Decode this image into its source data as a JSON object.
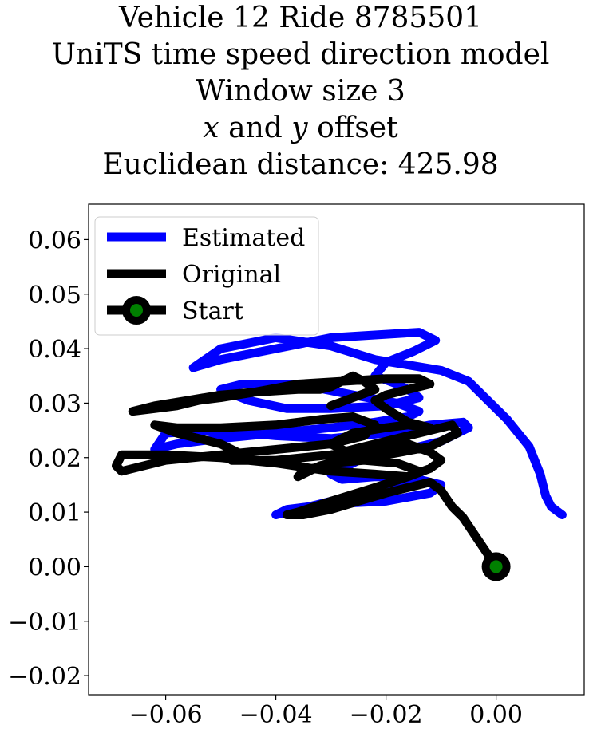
{
  "chart_data": {
    "type": "line",
    "title_lines": [
      "Vehicle 12 Ride 8785501",
      "UniTS time speed direction model",
      "Window size 3",
      "x and y offset",
      "Euclidean distance: 425.98"
    ],
    "xlabel": "",
    "ylabel": "",
    "xlim": [
      -0.074,
      0.016
    ],
    "ylim": [
      -0.0235,
      0.0665
    ],
    "xticks": [
      -0.06,
      -0.04,
      -0.02,
      0.0
    ],
    "xtick_labels": [
      "−0.06",
      "−0.04",
      "−0.02",
      "0.00"
    ],
    "yticks": [
      -0.02,
      -0.01,
      0.0,
      0.01,
      0.02,
      0.03,
      0.04,
      0.05,
      0.06
    ],
    "ytick_labels": [
      "−0.02",
      "−0.01",
      "0.00",
      "0.01",
      "0.02",
      "0.03",
      "0.04",
      "0.05",
      "0.06"
    ],
    "grid": false,
    "legend_position": "top-left",
    "series": [
      {
        "name": "Estimated",
        "color": "#0000ff",
        "x": [
          0.012,
          0.01,
          0.009,
          0.008,
          0.006,
          0.002,
          -0.002,
          -0.005,
          -0.01,
          -0.016,
          -0.022,
          -0.03,
          -0.04,
          -0.05,
          -0.055,
          -0.05,
          -0.04,
          -0.03,
          -0.022,
          -0.014,
          -0.011,
          -0.015,
          -0.02,
          -0.022,
          -0.018,
          -0.016,
          -0.014,
          -0.02,
          -0.03,
          -0.038,
          -0.045,
          -0.05,
          -0.046,
          -0.036,
          -0.026,
          -0.018,
          -0.014,
          -0.016,
          -0.022,
          -0.03,
          -0.04,
          -0.05,
          -0.058,
          -0.062,
          -0.06,
          -0.05,
          -0.04,
          -0.03,
          -0.02,
          -0.012,
          -0.006,
          -0.005,
          -0.01,
          -0.018,
          -0.025,
          -0.03,
          -0.028,
          -0.022,
          -0.016,
          -0.01,
          -0.012,
          -0.02,
          -0.03,
          -0.038,
          -0.04,
          -0.036,
          -0.028,
          -0.02,
          -0.014,
          -0.012
        ],
        "y": [
          0.0095,
          0.011,
          0.013,
          0.017,
          0.022,
          0.027,
          0.031,
          0.034,
          0.036,
          0.037,
          0.038,
          0.0405,
          0.042,
          0.04,
          0.0365,
          0.038,
          0.04,
          0.042,
          0.0425,
          0.043,
          0.0415,
          0.0395,
          0.0375,
          0.035,
          0.0335,
          0.0325,
          0.031,
          0.0295,
          0.029,
          0.029,
          0.0305,
          0.0325,
          0.0335,
          0.0335,
          0.0315,
          0.03,
          0.0285,
          0.0275,
          0.0265,
          0.0255,
          0.0245,
          0.0235,
          0.0225,
          0.0215,
          0.0245,
          0.025,
          0.024,
          0.0235,
          0.0245,
          0.026,
          0.0265,
          0.0255,
          0.023,
          0.021,
          0.0195,
          0.017,
          0.016,
          0.0165,
          0.0165,
          0.015,
          0.0135,
          0.012,
          0.0115,
          0.0105,
          0.0095,
          0.0105,
          0.0125,
          0.0145,
          0.016,
          0.0155
        ]
      },
      {
        "name": "Original",
        "color": "#000000",
        "x": [
          0.0,
          -0.002,
          -0.004,
          -0.006,
          -0.008,
          -0.01,
          -0.012,
          -0.016,
          -0.02,
          -0.025,
          -0.03,
          -0.035,
          -0.038,
          -0.036,
          -0.03,
          -0.022,
          -0.016,
          -0.012,
          -0.01,
          -0.012,
          -0.016,
          -0.02,
          -0.026,
          -0.032,
          -0.036,
          -0.035,
          -0.03,
          -0.024,
          -0.018,
          -0.014,
          -0.016,
          -0.022,
          -0.03,
          -0.04,
          -0.05,
          -0.06,
          -0.068,
          -0.069,
          -0.068,
          -0.06,
          -0.05,
          -0.04,
          -0.03,
          -0.024,
          -0.022,
          -0.026,
          -0.032,
          -0.04,
          -0.05,
          -0.058,
          -0.062,
          -0.058,
          -0.05,
          -0.046,
          -0.048,
          -0.04,
          -0.03,
          -0.024,
          -0.018,
          -0.012,
          -0.008,
          -0.007,
          -0.012,
          -0.02,
          -0.026,
          -0.03,
          -0.026,
          -0.02,
          -0.016,
          -0.012,
          -0.016,
          -0.02,
          -0.022,
          -0.02,
          -0.016,
          -0.012,
          -0.014,
          -0.02,
          -0.028,
          -0.036,
          -0.044,
          -0.05,
          -0.054,
          -0.058,
          -0.062,
          -0.066,
          -0.062,
          -0.056,
          -0.05,
          -0.044,
          -0.036,
          -0.032,
          -0.03,
          -0.028,
          -0.026,
          -0.024,
          -0.022,
          -0.026,
          -0.03
        ],
        "y": [
          0.0,
          0.003,
          0.006,
          0.009,
          0.011,
          0.014,
          0.0155,
          0.0145,
          0.0135,
          0.012,
          0.0105,
          0.0095,
          0.0095,
          0.01,
          0.012,
          0.0145,
          0.0165,
          0.018,
          0.0195,
          0.021,
          0.0225,
          0.0215,
          0.02,
          0.0185,
          0.0165,
          0.0175,
          0.019,
          0.0195,
          0.019,
          0.0175,
          0.0165,
          0.017,
          0.0175,
          0.019,
          0.02,
          0.0205,
          0.0205,
          0.0185,
          0.0175,
          0.0195,
          0.0205,
          0.0215,
          0.0225,
          0.024,
          0.026,
          0.0275,
          0.027,
          0.026,
          0.0255,
          0.0255,
          0.026,
          0.0245,
          0.0225,
          0.0205,
          0.0195,
          0.0195,
          0.0205,
          0.022,
          0.0235,
          0.025,
          0.026,
          0.0245,
          0.022,
          0.0205,
          0.0205,
          0.0225,
          0.0245,
          0.0255,
          0.026,
          0.0255,
          0.0265,
          0.029,
          0.0305,
          0.0315,
          0.0325,
          0.0335,
          0.0345,
          0.0345,
          0.034,
          0.0335,
          0.032,
          0.031,
          0.0305,
          0.0295,
          0.029,
          0.0285,
          0.0295,
          0.0305,
          0.0315,
          0.032,
          0.0325,
          0.0325,
          0.033,
          0.034,
          0.035,
          0.034,
          0.0325,
          0.031,
          0.0295
        ]
      },
      {
        "name": "Start",
        "color": "#000000",
        "marker_face": "#008000",
        "x": [
          0.0
        ],
        "y": [
          0.0
        ]
      }
    ],
    "legend": [
      {
        "label": "Estimated",
        "color": "#0000ff",
        "marker": false
      },
      {
        "label": "Original",
        "color": "#000000",
        "marker": false
      },
      {
        "label": "Start",
        "color": "#000000",
        "marker": true,
        "marker_face": "#008000"
      }
    ]
  }
}
